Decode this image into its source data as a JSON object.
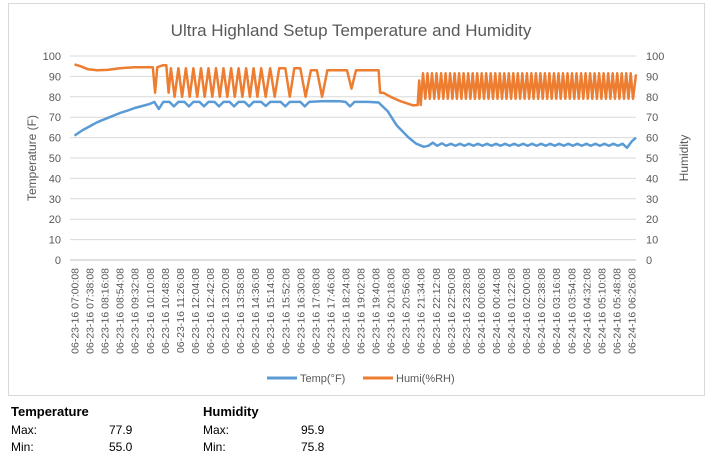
{
  "chart_data": {
    "type": "line",
    "title": "Ultra Highland Setup Temperature and Humidity",
    "ylabel": "Temperature (F)",
    "y2label": "Humidity",
    "ylim": [
      0,
      100
    ],
    "y2lim": [
      0,
      100
    ],
    "yticks": [
      0,
      10,
      20,
      30,
      40,
      50,
      60,
      70,
      80,
      90,
      100
    ],
    "y2ticks": [
      0,
      10,
      20,
      30,
      40,
      50,
      60,
      70,
      80,
      90,
      100
    ],
    "grid": true,
    "legend": "bottom",
    "tick_labels": [
      "06-23-16 07:00:08",
      "06-23-16 07:38:08",
      "06-23-16 08:16:08",
      "06-23-16 08:54:08",
      "06-23-16 09:32:08",
      "06-23-16 10:10:08",
      "06-23-16 10:48:08",
      "06-23-16 11:26:08",
      "06-23-16 12:04:08",
      "06-23-16 12:42:08",
      "06-23-16 13:20:08",
      "06-23-16 13:58:08",
      "06-23-16 14:36:08",
      "06-23-16 15:14:08",
      "06-23-16 15:52:08",
      "06-23-16 16:30:08",
      "06-23-16 17:08:08",
      "06-23-16 17:46:08",
      "06-23-16 18:24:08",
      "06-23-16 19:02:08",
      "06-23-16 19:40:08",
      "06-23-16 20:18:08",
      "06-23-16 20:56:08",
      "06-23-16 21:34:08",
      "06-23-16 22:12:08",
      "06-23-16 22:50:08",
      "06-23-16 23:28:08",
      "06-24-16 00:06:08",
      "06-24-16 00:44:08",
      "06-24-16 01:22:08",
      "06-24-16 02:00:08",
      "06-24-16 02:38:08",
      "06-24-16 03:16:08",
      "06-24-16 03:54:08",
      "06-24-16 04:32:08",
      "06-24-16 05:10:08",
      "06-24-16 05:48:08",
      "06-24-16 06:26:08"
    ],
    "series": [
      {
        "name": "Temp(°F)",
        "color": "#5b9bd5",
        "axis": "left",
        "points": [
          [
            0,
            61
          ],
          [
            0.5,
            63.5
          ],
          [
            1,
            65.5
          ],
          [
            1.5,
            67.5
          ],
          [
            2,
            69
          ],
          [
            2.5,
            70.5
          ],
          [
            3,
            72
          ],
          [
            3.5,
            73.2
          ],
          [
            4,
            74.5
          ],
          [
            4.5,
            75.5
          ],
          [
            5,
            76.5
          ],
          [
            5.3,
            77.5
          ],
          [
            5.6,
            74
          ],
          [
            5.9,
            77.5
          ],
          [
            6.3,
            77.5
          ],
          [
            6.6,
            75.3
          ],
          [
            6.9,
            77.5
          ],
          [
            7.3,
            77.5
          ],
          [
            7.6,
            75.3
          ],
          [
            7.9,
            77.5
          ],
          [
            8.3,
            77.5
          ],
          [
            8.6,
            75.3
          ],
          [
            8.9,
            77.5
          ],
          [
            9.3,
            77.5
          ],
          [
            9.6,
            75.3
          ],
          [
            9.9,
            77.5
          ],
          [
            10.3,
            77.5
          ],
          [
            10.6,
            75.3
          ],
          [
            10.9,
            77.5
          ],
          [
            11.3,
            77.5
          ],
          [
            11.6,
            75.3
          ],
          [
            11.9,
            77.5
          ],
          [
            12.4,
            77.5
          ],
          [
            12.7,
            75.5
          ],
          [
            13,
            77.5
          ],
          [
            13.7,
            77.5
          ],
          [
            14,
            75.3
          ],
          [
            14.3,
            77.5
          ],
          [
            15,
            77.5
          ],
          [
            15.3,
            75.3
          ],
          [
            15.6,
            77.5
          ],
          [
            16.4,
            77.8
          ],
          [
            17,
            77.9
          ],
          [
            17.6,
            77.8
          ],
          [
            18,
            77.5
          ],
          [
            18.3,
            75.3
          ],
          [
            18.6,
            77.5
          ],
          [
            19.5,
            77.5
          ],
          [
            20.2,
            77.2
          ],
          [
            20.8,
            73
          ],
          [
            21.4,
            66
          ],
          [
            22.2,
            60
          ],
          [
            22.7,
            57
          ],
          [
            23.2,
            55.5
          ],
          [
            23.5,
            56
          ],
          [
            23.8,
            57.5
          ],
          [
            24.1,
            56
          ],
          [
            24.4,
            57.2
          ],
          [
            24.7,
            56
          ],
          [
            25,
            57
          ],
          [
            25.3,
            56
          ],
          [
            25.6,
            57
          ],
          [
            25.9,
            56
          ],
          [
            26.2,
            57
          ],
          [
            26.5,
            56
          ],
          [
            26.8,
            57
          ],
          [
            27.1,
            56
          ],
          [
            27.4,
            57
          ],
          [
            27.7,
            56
          ],
          [
            28,
            57
          ],
          [
            28.3,
            56
          ],
          [
            28.6,
            57
          ],
          [
            28.9,
            56
          ],
          [
            29.2,
            57
          ],
          [
            29.5,
            56
          ],
          [
            29.8,
            57
          ],
          [
            30.1,
            56
          ],
          [
            30.4,
            57
          ],
          [
            30.7,
            56
          ],
          [
            31,
            57
          ],
          [
            31.3,
            56
          ],
          [
            31.6,
            57
          ],
          [
            31.9,
            56
          ],
          [
            32.2,
            57
          ],
          [
            32.5,
            56
          ],
          [
            32.8,
            57
          ],
          [
            33.1,
            56
          ],
          [
            33.4,
            57
          ],
          [
            33.7,
            56
          ],
          [
            34,
            57
          ],
          [
            34.3,
            56
          ],
          [
            34.6,
            57
          ],
          [
            34.9,
            56
          ],
          [
            35.2,
            57
          ],
          [
            35.5,
            56
          ],
          [
            35.8,
            57
          ],
          [
            36.1,
            56
          ],
          [
            36.4,
            57
          ],
          [
            36.7,
            55
          ],
          [
            37,
            58
          ],
          [
            37.3,
            60
          ]
        ]
      },
      {
        "name": "Humi(%RH)",
        "color": "#ed7d31",
        "axis": "right",
        "points": [
          [
            0,
            95.9
          ],
          [
            0.4,
            95
          ],
          [
            0.9,
            93.5
          ],
          [
            1.5,
            93
          ],
          [
            2.2,
            93.2
          ],
          [
            3,
            94
          ],
          [
            4,
            94.5
          ],
          [
            5,
            94.5
          ],
          [
            5.2,
            94.5
          ],
          [
            5.35,
            82
          ],
          [
            5.5,
            94.5
          ],
          [
            5.9,
            95.5
          ],
          [
            6.1,
            95.5
          ],
          [
            6.25,
            82
          ],
          [
            6.4,
            94
          ],
          [
            6.65,
            80
          ],
          [
            6.9,
            94
          ],
          [
            7.15,
            80
          ],
          [
            7.4,
            94
          ],
          [
            7.65,
            80
          ],
          [
            7.9,
            94
          ],
          [
            8.15,
            80
          ],
          [
            8.4,
            94
          ],
          [
            8.65,
            80
          ],
          [
            8.9,
            94
          ],
          [
            9.15,
            80
          ],
          [
            9.4,
            94
          ],
          [
            9.65,
            80
          ],
          [
            9.9,
            94
          ],
          [
            10.15,
            80
          ],
          [
            10.4,
            94
          ],
          [
            10.65,
            80
          ],
          [
            10.9,
            94
          ],
          [
            11.15,
            80
          ],
          [
            11.4,
            94
          ],
          [
            11.65,
            80
          ],
          [
            11.9,
            94
          ],
          [
            12.15,
            80
          ],
          [
            12.4,
            94
          ],
          [
            12.7,
            80
          ],
          [
            13,
            94
          ],
          [
            13.3,
            80
          ],
          [
            13.6,
            94
          ],
          [
            14,
            94
          ],
          [
            14.3,
            80
          ],
          [
            14.6,
            94
          ],
          [
            15,
            94
          ],
          [
            15.35,
            80
          ],
          [
            15.7,
            93
          ],
          [
            16.1,
            93
          ],
          [
            16.45,
            80
          ],
          [
            16.8,
            93
          ],
          [
            17.5,
            93
          ],
          [
            18.1,
            93
          ],
          [
            18.4,
            84
          ],
          [
            18.7,
            93
          ],
          [
            19.5,
            93
          ],
          [
            20.2,
            93
          ],
          [
            20.3,
            82
          ],
          [
            20.5,
            82
          ],
          [
            21,
            80
          ],
          [
            21.6,
            78
          ],
          [
            22.2,
            76.5
          ],
          [
            22.5,
            75.8
          ],
          [
            22.8,
            76
          ],
          [
            22.9,
            88
          ],
          [
            23,
            76
          ],
          [
            23.15,
            91.5
          ],
          [
            23.3,
            79
          ],
          [
            23.45,
            91.5
          ],
          [
            23.6,
            79
          ],
          [
            23.75,
            91.5
          ],
          [
            23.9,
            79
          ],
          [
            24.05,
            91.5
          ],
          [
            24.2,
            79
          ],
          [
            24.35,
            91.5
          ],
          [
            24.5,
            79
          ],
          [
            24.65,
            91.5
          ],
          [
            24.8,
            79
          ],
          [
            24.95,
            91.5
          ],
          [
            25.1,
            79
          ],
          [
            25.25,
            91.5
          ],
          [
            25.4,
            79
          ],
          [
            25.55,
            91.5
          ],
          [
            25.7,
            79
          ],
          [
            25.85,
            91.5
          ],
          [
            26,
            79
          ],
          [
            26.15,
            91.5
          ],
          [
            26.3,
            79
          ],
          [
            26.45,
            91.5
          ],
          [
            26.6,
            79
          ],
          [
            26.75,
            91.5
          ],
          [
            26.9,
            79
          ],
          [
            27.05,
            91.5
          ],
          [
            27.2,
            79
          ],
          [
            27.35,
            91.5
          ],
          [
            27.5,
            79
          ],
          [
            27.65,
            91.5
          ],
          [
            27.8,
            79
          ],
          [
            27.95,
            91.5
          ],
          [
            28.1,
            79
          ],
          [
            28.25,
            91.5
          ],
          [
            28.4,
            79
          ],
          [
            28.55,
            91.5
          ],
          [
            28.7,
            79
          ],
          [
            28.85,
            91.5
          ],
          [
            29,
            79
          ],
          [
            29.15,
            91.5
          ],
          [
            29.3,
            79
          ],
          [
            29.45,
            91.5
          ],
          [
            29.6,
            79
          ],
          [
            29.75,
            91.5
          ],
          [
            29.9,
            79
          ],
          [
            30.05,
            91.5
          ],
          [
            30.2,
            79
          ],
          [
            30.35,
            91.5
          ],
          [
            30.5,
            79
          ],
          [
            30.65,
            91.5
          ],
          [
            30.8,
            79
          ],
          [
            30.95,
            91.5
          ],
          [
            31.1,
            79
          ],
          [
            31.25,
            91.5
          ],
          [
            31.4,
            79
          ],
          [
            31.55,
            91.5
          ],
          [
            31.7,
            79
          ],
          [
            31.85,
            91.5
          ],
          [
            32,
            79
          ],
          [
            32.15,
            91.5
          ],
          [
            32.3,
            79
          ],
          [
            32.45,
            91.5
          ],
          [
            32.6,
            79
          ],
          [
            32.75,
            91.5
          ],
          [
            32.9,
            79
          ],
          [
            33.05,
            91.5
          ],
          [
            33.2,
            79
          ],
          [
            33.35,
            91.5
          ],
          [
            33.5,
            79
          ],
          [
            33.65,
            91.5
          ],
          [
            33.8,
            79
          ],
          [
            33.95,
            91.5
          ],
          [
            34.1,
            79
          ],
          [
            34.25,
            91.5
          ],
          [
            34.4,
            79
          ],
          [
            34.55,
            91.5
          ],
          [
            34.7,
            79
          ],
          [
            34.85,
            91.5
          ],
          [
            35,
            79
          ],
          [
            35.15,
            91.5
          ],
          [
            35.3,
            79
          ],
          [
            35.45,
            91.5
          ],
          [
            35.6,
            79
          ],
          [
            35.75,
            91.5
          ],
          [
            35.9,
            79
          ],
          [
            36.05,
            91.5
          ],
          [
            36.2,
            79
          ],
          [
            36.35,
            91.5
          ],
          [
            36.5,
            79
          ],
          [
            36.65,
            91.5
          ],
          [
            36.8,
            79
          ],
          [
            36.95,
            91.5
          ],
          [
            37.1,
            79
          ],
          [
            37.3,
            91
          ]
        ]
      }
    ]
  },
  "stats": {
    "temperature": {
      "title": "Temperature",
      "max_label": "Max:",
      "max": "77.9",
      "min_label": "Min:",
      "min": "55.0"
    },
    "humidity": {
      "title": "Humidity",
      "max_label": "Max:",
      "max": "95.9",
      "min_label": "Min:",
      "min": "75.8"
    }
  }
}
